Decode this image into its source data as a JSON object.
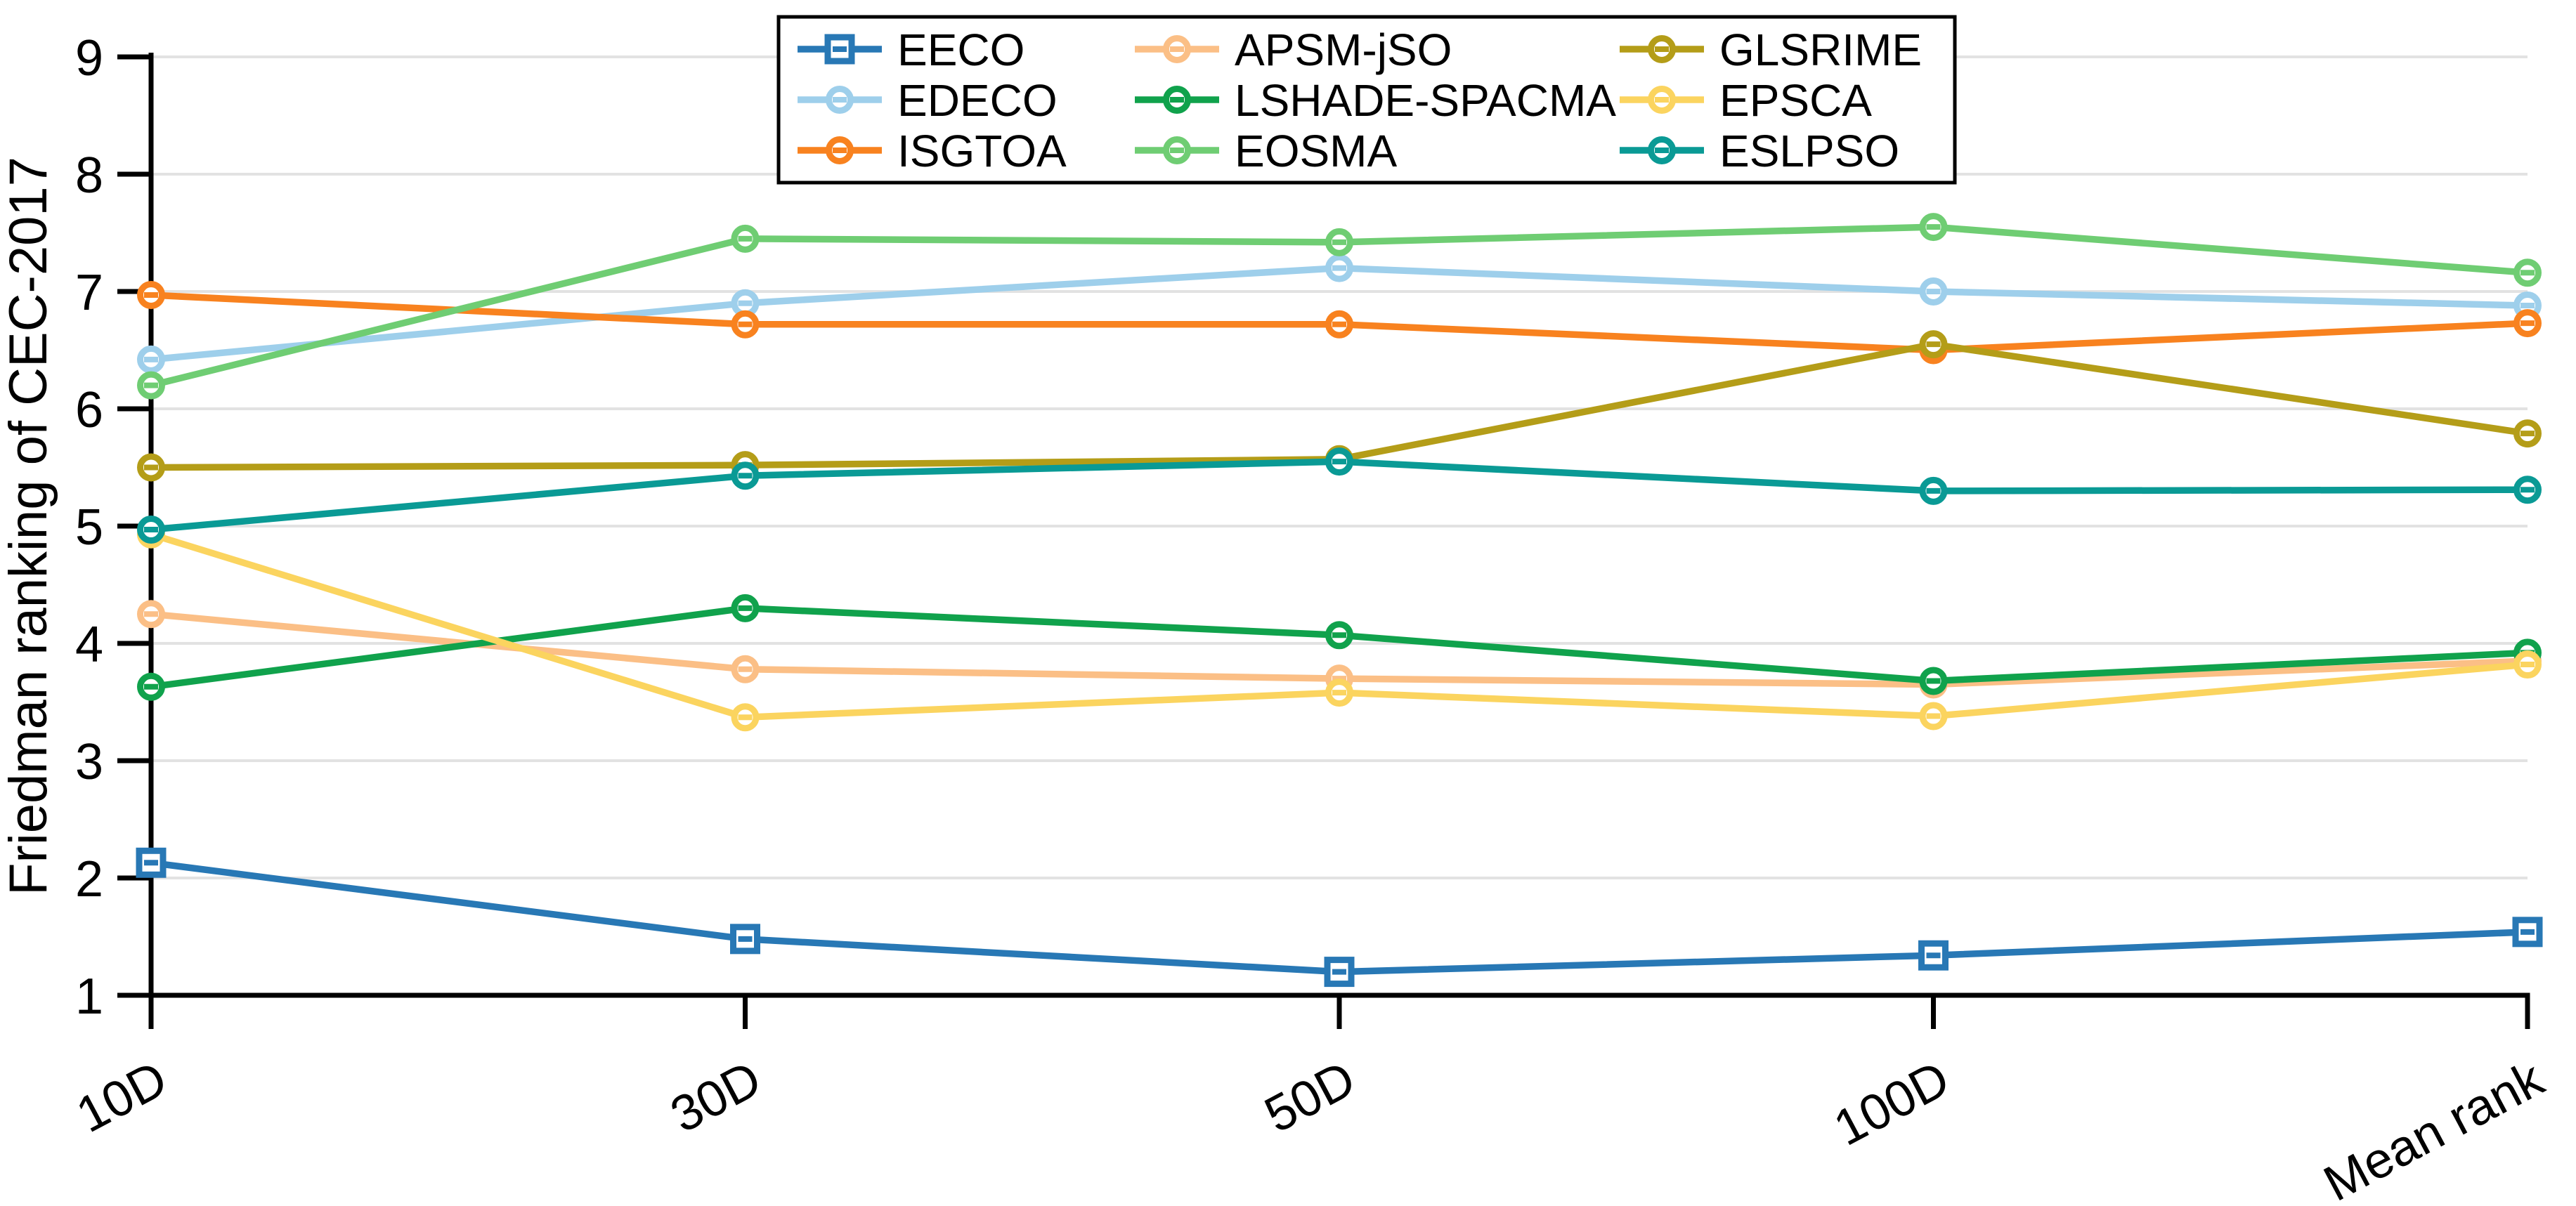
{
  "chart_data": {
    "type": "line",
    "title": "",
    "ylabel": "Friedman ranking of CEC-2017",
    "xlabel": "",
    "categories": [
      "10D",
      "30D",
      "50D",
      "100D",
      "Mean rank"
    ],
    "ylim": [
      1,
      9
    ],
    "yticks": [
      1,
      2,
      3,
      4,
      5,
      6,
      7,
      8,
      9
    ],
    "grid": "horizontal",
    "grid_color": "#e2e2e2",
    "axis_color": "#000000",
    "legend_position": "top-center, 3 columns, black bordered box",
    "x_tick_label_rotation_deg": -28,
    "series": [
      {
        "name": "EECO",
        "color": "#2878b5",
        "marker": "square",
        "values": [
          2.13,
          1.48,
          1.2,
          1.34,
          1.54
        ]
      },
      {
        "name": "EDECO",
        "color": "#9ecfeb",
        "marker": "circle",
        "values": [
          6.42,
          6.9,
          7.2,
          7.0,
          6.88
        ]
      },
      {
        "name": "ISGTOA",
        "color": "#f8821f",
        "marker": "circle",
        "values": [
          6.97,
          6.72,
          6.72,
          6.5,
          6.73
        ]
      },
      {
        "name": "APSM-jSO",
        "color": "#fbbf86",
        "marker": "circle",
        "values": [
          4.25,
          3.78,
          3.7,
          3.65,
          3.85
        ]
      },
      {
        "name": "LSHADE-SPACMA",
        "color": "#10a24c",
        "marker": "circle",
        "values": [
          3.63,
          4.3,
          4.07,
          3.68,
          3.92
        ]
      },
      {
        "name": "EOSMA",
        "color": "#6fcd73",
        "marker": "circle",
        "values": [
          6.2,
          7.45,
          7.42,
          7.55,
          7.16
        ]
      },
      {
        "name": "GLSRIME",
        "color": "#b49d18",
        "marker": "circle",
        "values": [
          5.5,
          5.52,
          5.57,
          6.55,
          5.79
        ]
      },
      {
        "name": "EPSCA",
        "color": "#fbd45f",
        "marker": "circle",
        "values": [
          4.93,
          3.37,
          3.58,
          3.38,
          3.82
        ]
      },
      {
        "name": "ESLPSO",
        "color": "#0a9a95",
        "marker": "circle",
        "values": [
          4.97,
          5.43,
          5.55,
          5.3,
          5.31
        ]
      }
    ]
  }
}
